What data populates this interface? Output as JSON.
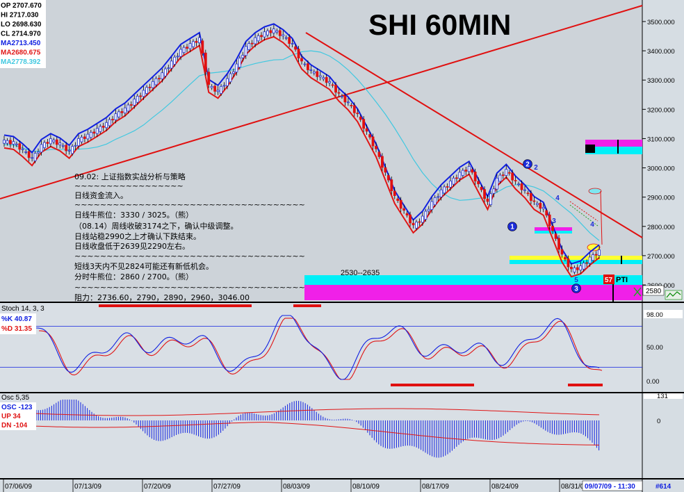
{
  "title": "SHI 60MIN",
  "colors": {
    "plot_bg": "#cdd3d9",
    "axis_bg": "#d6dde3",
    "panel_bg": "#d9dfe5",
    "up": "#1f2fd0",
    "down": "#e01010",
    "ma_blue": "#1020e0",
    "ma_red": "#e01515",
    "ma_cyan": "#40c8e0",
    "trend": "#e01010",
    "cyan_zone": "#00f0f8",
    "magenta_zone": "#f020e8",
    "yellow_zone": "#ffff30"
  },
  "ohlc": [
    {
      "label": "OP 2707.670",
      "color": "#000000"
    },
    {
      "label": "HI 2717.030",
      "color": "#000000"
    },
    {
      "label": "LO 2698.630",
      "color": "#000000"
    },
    {
      "label": "CL 2714.970",
      "color": "#000000"
    },
    {
      "label": "MA2713.450",
      "color": "#1020e0"
    },
    {
      "label": "MA2680.675",
      "color": "#e01515"
    },
    {
      "label": "MA2778.392",
      "color": "#40c8e0"
    }
  ],
  "annotation": {
    "lines": [
      "09.02: 上证指数实战分析与策略",
      "~~~~~~~~~~~~~~~~~",
      "日线资金流入。",
      "~~~~~~~~~~~~~~~~~~~~~~~~~~~~~~~~~~~~",
      "日线牛熊位：3330 / 3025。（熊）",
      "（08.14）周线收破3174之下，确认中级调整。",
      "日线站稳2990之上才确认下跌结束。",
      "日线收盘低于2639见2290左右。",
      "~~~~~~~~~~~~~~~~~~~~~~~~~~~~~~~~~~~~",
      "短线3天内不见2824可能还有新低机会。",
      "分时牛熊位：2860 / 2700。（熊）",
      "~~~~~~~~~~~~~~~~~~~~~~~~~~~~~~~~~~~~",
      "阻力：2736.60，2790，2890，2960，3046.00"
    ],
    "zone_label": "2530--2635",
    "pti_value": "57",
    "pti_label": "PTI",
    "wave_labels": [
      "1",
      "2",
      "2",
      "3",
      "4",
      "4",
      "5",
      "3"
    ]
  },
  "price_axis": {
    "ticks": [
      "3500.000",
      "3400.000",
      "3300.000",
      "3200.000",
      "3100.000",
      "3000.000",
      "2900.000",
      "2800.000",
      "2700.000",
      "2600.000"
    ],
    "last_tag": "2580"
  },
  "stoch": {
    "header": "Stoch 14, 3, 3",
    "k_label": "%K  40.87",
    "d_label": "%D  31.35",
    "ticks": [
      "98.00",
      "50.00",
      "0.00"
    ]
  },
  "osc": {
    "header": "Osc 5,35",
    "osc_label": "OSC -123",
    "up_label": "UP   34",
    "dn_label": "DN   -104",
    "ticks": [
      "131",
      "0"
    ]
  },
  "time_axis": {
    "labels": [
      "07/06/09",
      "07/13/09",
      "07/20/09",
      "07/27/09",
      "08/03/09",
      "08/10/09",
      "08/17/09",
      "08/24/09",
      "08/31/09"
    ],
    "current": "09/07/09 - 11:30",
    "count": "#614"
  },
  "chart_data": {
    "type": "candlestick",
    "title": "SHI 60MIN",
    "x_dates": [
      "07/06/09",
      "07/13/09",
      "07/20/09",
      "07/27/09",
      "08/03/09",
      "08/10/09",
      "08/17/09",
      "08/24/09",
      "08/31/09"
    ],
    "ylim": [
      2560,
      3560
    ],
    "last_bar": {
      "open": 2707.67,
      "high": 2717.03,
      "low": 2698.63,
      "close": 2714.97
    },
    "moving_averages": [
      2713.45,
      2680.675,
      2778.392
    ],
    "close_path": [
      3090,
      3085,
      3060,
      3030,
      3075,
      3095,
      3080,
      3055,
      3095,
      3110,
      3130,
      3150,
      3180,
      3200,
      3230,
      3260,
      3290,
      3320,
      3360,
      3400,
      3420,
      3440,
      3280,
      3260,
      3300,
      3350,
      3410,
      3440,
      3460,
      3470,
      3450,
      3420,
      3360,
      3330,
      3310,
      3290,
      3250,
      3220,
      3180,
      3120,
      3060,
      2980,
      2900,
      2850,
      2800,
      2830,
      2880,
      2920,
      2950,
      2980,
      3000,
      2940,
      2880,
      2960,
      2990,
      2950,
      2920,
      2880,
      2860,
      2780,
      2700,
      2650,
      2660,
      2690,
      2715
    ],
    "resistance_levels": [
      2736.6,
      2790,
      2890,
      2960,
      3046.0
    ],
    "support_zone": [
      2530,
      2635
    ],
    "stoch_k": 40.87,
    "stoch_d": 31.35,
    "osc": -123,
    "osc_up": 34,
    "osc_dn": -104
  }
}
